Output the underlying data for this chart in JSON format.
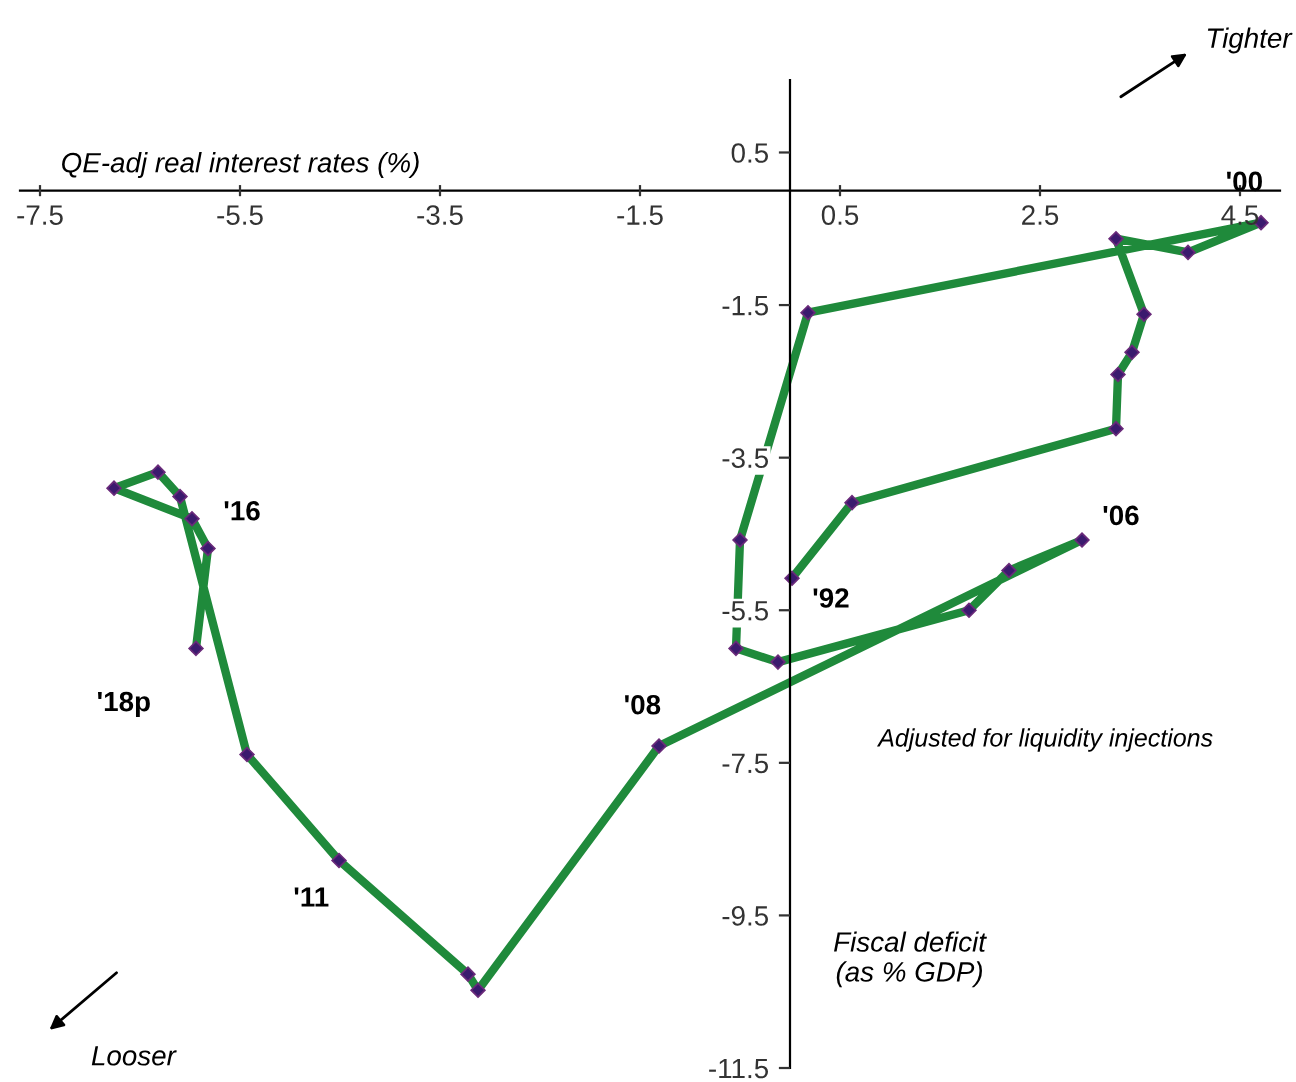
{
  "chart_data": {
    "type": "line",
    "xlabel": "QE-adj real interest rates (%)",
    "ylabel": "Fiscal deficit\n(as % GDP)",
    "series": [
      {
        "color": "#1f8a3b",
        "x": [
          0.02,
          0.62,
          3.26,
          3.28,
          3.42,
          3.54,
          3.26,
          3.98,
          4.71,
          0.18,
          -0.5,
          -0.54,
          -0.12,
          1.79,
          2.19,
          2.92,
          -1.31,
          -3.12,
          -3.22,
          -4.51,
          -5.43,
          -6.1,
          -6.32,
          -6.76,
          -5.98,
          -5.82,
          -5.94
        ],
        "values": [
          -5.08,
          -4.09,
          -3.12,
          -2.41,
          -2.12,
          -1.62,
          -0.63,
          -0.81,
          -0.42,
          -1.6,
          -4.58,
          -6.0,
          -6.18,
          -5.5,
          -4.98,
          -4.58,
          -7.28,
          -10.48,
          -10.27,
          -8.78,
          -7.39,
          -4.01,
          -3.69,
          -3.9,
          -4.3,
          -4.69,
          -6.0
        ]
      }
    ],
    "marker": "diamond",
    "line_style": "solid",
    "grid": false,
    "legend": false,
    "xlim": [
      -7.7,
      4.9
    ],
    "ylim": [
      -11.5,
      1.45
    ],
    "xticks": [
      -7.5,
      -5.5,
      -3.5,
      -1.5,
      0.5,
      2.5,
      4.5
    ],
    "yticks": [
      0.5,
      -1.5,
      -3.5,
      -5.5,
      -7.5,
      -9.5,
      -11.5
    ],
    "annotations": [
      {
        "text": "'92",
        "x": 0.02,
        "y": -5.08
      },
      {
        "text": "'00",
        "x": 4.71,
        "y": -0.42
      },
      {
        "text": "'06",
        "x": 2.92,
        "y": -4.58
      },
      {
        "text": "'08",
        "x": -1.31,
        "y": -7.28
      },
      {
        "text": "'11",
        "x": -4.51,
        "y": -8.78
      },
      {
        "text": "'16",
        "x": -5.98,
        "y": -4.3
      },
      {
        "text": "'18p",
        "x": -5.94,
        "y": -6.0
      },
      "Adjusted for liquidity injections",
      "Tighter",
      "Looser"
    ]
  }
}
